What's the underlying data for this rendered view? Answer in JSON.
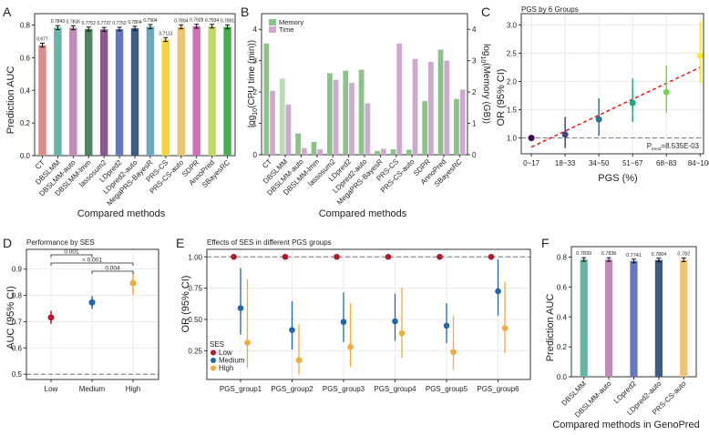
{
  "chart_data": [
    {
      "panel": "A",
      "type": "bar",
      "title": "",
      "xlabel": "Compared methods",
      "ylabel": "Prediction AUC",
      "ylim": [
        0,
        0.87
      ],
      "yticks": [
        0.0,
        0.2,
        0.4,
        0.6,
        0.8
      ],
      "categories": [
        "CT",
        "DBSLMM",
        "DBSLMM-auto",
        "DBSLMM-lmm",
        "lassosum2",
        "LDpred2",
        "LDpred2-auto",
        "MegaPRS-BayesR",
        "PRS-CS",
        "PRS-CS-auto",
        "SDPR",
        "AnnoPred",
        "SBayesRC"
      ],
      "values": [
        0.677,
        0.7843,
        0.7836,
        0.7752,
        0.7737,
        0.7752,
        0.7804,
        0.7904,
        0.7113,
        0.7894,
        0.7928,
        0.7934,
        0.7891
      ],
      "labels": [
        "0.677",
        "0.7843",
        "0.7836",
        "0.7752",
        "0.7737",
        "0.7752",
        "0.7804",
        "0.7904",
        "0.7113",
        "0.7894",
        "0.7928",
        "0.7934",
        "0.7891"
      ],
      "error": [
        0.012,
        0.012,
        0.012,
        0.012,
        0.012,
        0.011,
        0.012,
        0.013,
        0.012,
        0.012,
        0.012,
        0.011,
        0.012
      ],
      "colors": [
        "#de8b8b",
        "#66b5a7",
        "#c28ab8",
        "#4e8561",
        "#8a5a8f",
        "#6677c2",
        "#3e5b84",
        "#6fa6be",
        "#f1d43d",
        "#edc473",
        "#cf6fb8",
        "#c3d86a",
        "#45b04c"
      ]
    },
    {
      "panel": "B",
      "type": "bar",
      "xlabel": "Compared methods",
      "ylabel": "log10(CPU time (min))",
      "ylabel_right": "log10(Memory (GB))",
      "ylim": [
        0,
        4.5
      ],
      "yticks": [
        0,
        1,
        2,
        3,
        4
      ],
      "legend": [
        "Memory",
        "Time"
      ],
      "legend_position": "top-left",
      "categories": [
        "CT",
        "DBSLMM",
        "DBSLMM-auto",
        "DBSLMM-lmm",
        "lassosum2",
        "LDpred2",
        "LDpred2-auto",
        "MegaPRS-BayesR",
        "PRS-CS",
        "PRS-CS-auto",
        "SDPR",
        "AnnoPred",
        "SBayesRC"
      ],
      "series": [
        {
          "name": "Memory",
          "color": "#8cc18a",
          "values": [
            3.55,
            2.43,
            0.68,
            0.41,
            2.6,
            2.68,
            2.71,
            0.12,
            0.17,
            0.16,
            1.71,
            3.35,
            1.78
          ]
        },
        {
          "name": "Time",
          "color": "#cfa8cf",
          "values": [
            2.04,
            1.6,
            0.21,
            0.17,
            2.39,
            2.29,
            1.64,
            0.19,
            3.55,
            3.06,
            2.96,
            3.0,
            2.08
          ]
        }
      ]
    },
    {
      "panel": "C",
      "type": "scatter",
      "title": "PGS by 6 Groups",
      "xlabel": "PGS (%)",
      "ylabel": "OR (95% CI)",
      "ylim": [
        0.72,
        3.2
      ],
      "yticks": [
        1.0,
        1.5,
        2.0,
        2.5,
        3.0
      ],
      "categories": [
        "0~17",
        "18~33",
        "34~50",
        "51~67",
        "68~83",
        "84~100"
      ],
      "values": [
        1.0,
        1.06,
        1.33,
        1.62,
        1.81,
        2.45
      ],
      "ci_low": [
        1.0,
        0.82,
        1.04,
        1.28,
        1.44,
        1.97
      ],
      "ci_high": [
        1.0,
        1.37,
        1.7,
        2.05,
        2.28,
        3.07
      ],
      "colors": [
        "#440154",
        "#414487",
        "#2a788e",
        "#22a884",
        "#7ad151",
        "#fde725"
      ],
      "trend_line": {
        "start": 0.84,
        "end": 2.25,
        "color": "#e41a1c"
      },
      "reference_line": 1.0,
      "annotation": {
        "prefix": "P",
        "subscript": "trend",
        "text": "=8.535E-03"
      }
    },
    {
      "panel": "D",
      "type": "scatter",
      "title": "Performance by SES",
      "xlabel": "",
      "ylabel": "AUC (95% CI)",
      "ylim": [
        0.48,
        0.975
      ],
      "yticks": [
        0.5,
        0.6,
        0.7,
        0.8,
        0.9
      ],
      "categories": [
        "Low",
        "Medium",
        "High"
      ],
      "values": [
        0.716,
        0.773,
        0.847
      ],
      "ci_low": [
        0.692,
        0.749,
        0.802
      ],
      "ci_high": [
        0.741,
        0.797,
        0.886
      ],
      "colors": [
        "#b2182b",
        "#2166ac",
        "#f4a93b"
      ],
      "reference_line": 0.5,
      "comparisons": [
        {
          "from": "Low",
          "to": "Medium",
          "p": "0.001"
        },
        {
          "from": "Low",
          "to": "High",
          "p": "< 0.001"
        },
        {
          "from": "Medium",
          "to": "High",
          "p": "0.004"
        }
      ]
    },
    {
      "panel": "E",
      "type": "scatter",
      "title": "Effects of SES in different PGS groups",
      "xlabel": "",
      "ylabel": "OR (95% CI)",
      "ylim": [
        0.02,
        1.06
      ],
      "yticks": [
        0.25,
        0.5,
        0.75,
        1.0
      ],
      "ytick_labels": [
        "0.25",
        "0.50",
        "0.75",
        "1.00"
      ],
      "categories": [
        "PGS_group1",
        "PGS_group2",
        "PGS_group3",
        "PGS_group4",
        "PGS_group5",
        "PGS_group6"
      ],
      "legend_title": "SES",
      "legend_position": "bottom-left",
      "reference_line": 1.0,
      "series": [
        {
          "name": "Low",
          "color": "#b2182b",
          "values": [
            1,
            1,
            1,
            1,
            1,
            1
          ],
          "ci_low": [
            1,
            1,
            1,
            1,
            1,
            1
          ],
          "ci_high": [
            1,
            1,
            1,
            1,
            1,
            1
          ]
        },
        {
          "name": "Medium",
          "color": "#2166ac",
          "values": [
            0.59,
            0.415,
            0.48,
            0.485,
            0.45,
            0.725
          ],
          "ci_low": [
            0.38,
            0.26,
            0.32,
            0.33,
            0.31,
            0.53
          ],
          "ci_high": [
            0.91,
            0.645,
            0.715,
            0.705,
            0.63,
            0.98
          ]
        },
        {
          "name": "High",
          "color": "#f4a93b",
          "values": [
            0.315,
            0.175,
            0.28,
            0.39,
            0.24,
            0.43
          ],
          "ci_low": [
            0.11,
            0.06,
            0.12,
            0.19,
            0.1,
            0.23
          ],
          "ci_high": [
            0.82,
            0.46,
            0.63,
            0.755,
            0.53,
            0.8
          ]
        }
      ]
    },
    {
      "panel": "F",
      "type": "bar",
      "xlabel": "Compared methods in GenoPred",
      "ylabel": "Prediction AUC",
      "ylim": [
        0,
        0.87
      ],
      "yticks": [
        0.0,
        0.2,
        0.4,
        0.6,
        0.8
      ],
      "categories": [
        "DBSLMM",
        "DBSLMM-auto",
        "LDpred2",
        "LDpred2-auto",
        "PRS-CS-auto"
      ],
      "values": [
        0.7839,
        0.7836,
        0.7741,
        0.7804,
        0.782
      ],
      "labels": [
        "0.7839",
        "0.7836",
        "0.7741",
        "0.7804",
        "0.782"
      ],
      "error": [
        0.012,
        0.012,
        0.012,
        0.012,
        0.012
      ],
      "colors": [
        "#66b5a7",
        "#c28ab8",
        "#6677c2",
        "#3e5b84",
        "#edc473"
      ]
    }
  ]
}
